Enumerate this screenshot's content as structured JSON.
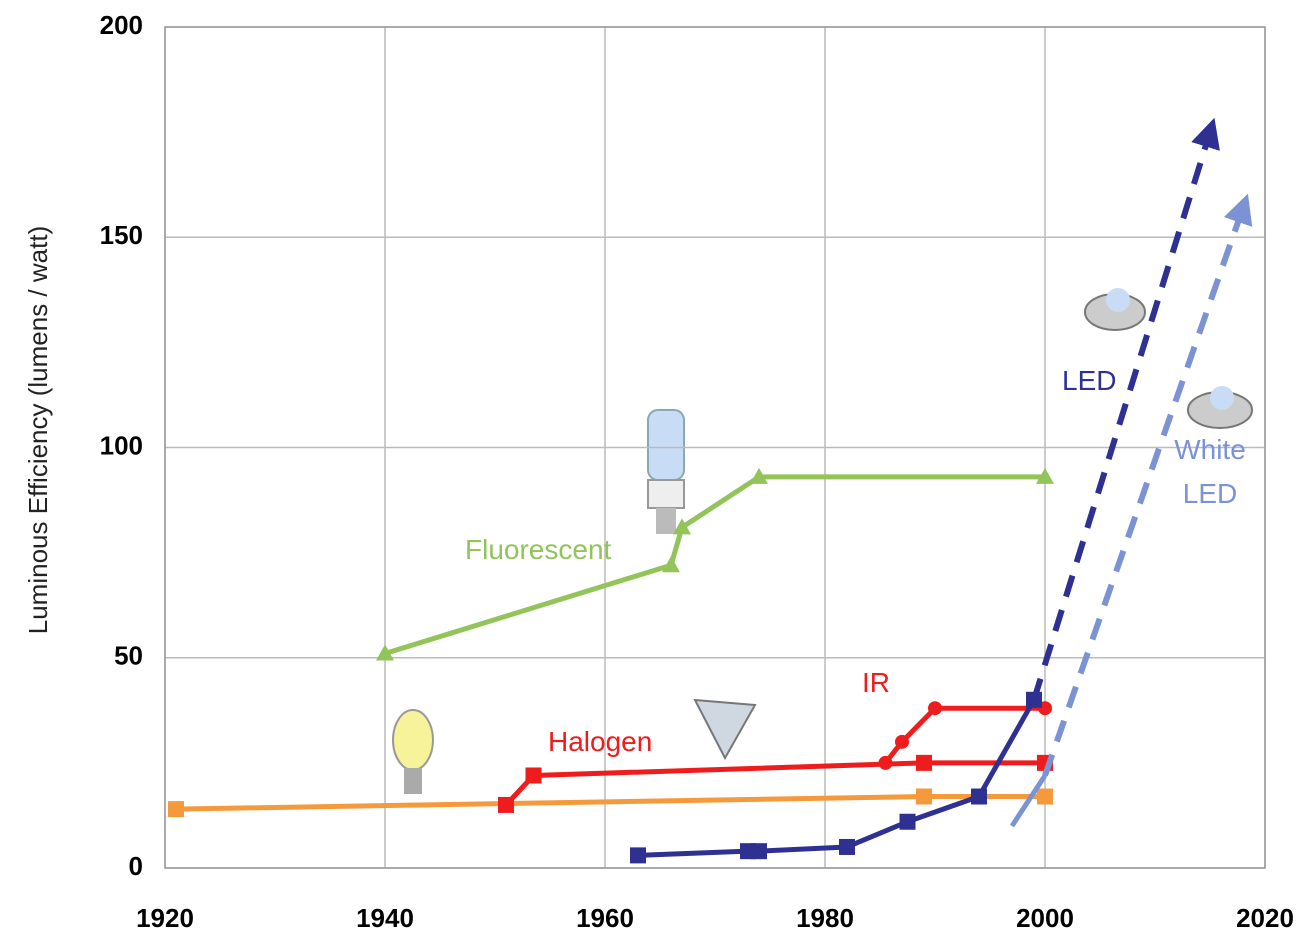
{
  "chart_data": {
    "type": "line",
    "y_label": "Luminous Efficiency (lumens / watt)",
    "xlim": [
      1920,
      2020
    ],
    "xticks": [
      1920,
      1940,
      1960,
      1980,
      2000,
      2020
    ],
    "ylim": [
      0,
      200
    ],
    "yticks": [
      0,
      50,
      100,
      150,
      200
    ],
    "grid": true,
    "series": [
      {
        "color": "#f59a3c",
        "marker": "square",
        "dash": false,
        "arrow": false,
        "x": [
          1921,
          1989,
          2000
        ],
        "values": [
          14,
          17,
          17
        ]
      },
      {
        "name": "Halogen",
        "color": "#ee1c1c",
        "marker": "square",
        "dash": false,
        "arrow": false,
        "x": [
          1951,
          1953.5,
          1989,
          2000
        ],
        "values": [
          15,
          22,
          25,
          25
        ]
      },
      {
        "name": "IR",
        "color": "#ee1c1c",
        "marker": "circle",
        "dash": false,
        "arrow": false,
        "x": [
          1985.5,
          1987,
          1990,
          2000
        ],
        "values": [
          25,
          30,
          38,
          38
        ]
      },
      {
        "name": "Fluorescent",
        "color": "#92c45a",
        "marker": "triangle",
        "dash": false,
        "arrow": false,
        "x": [
          1940,
          1966,
          1967,
          1974,
          2000
        ],
        "values": [
          51,
          72,
          81,
          93,
          93
        ]
      },
      {
        "name": "LED",
        "color": "#2e3192",
        "marker": "square",
        "dash": false,
        "arrow": false,
        "x": [
          1963,
          1973,
          1974,
          1982,
          1987.5,
          1994,
          1999
        ],
        "values": [
          3,
          4,
          4,
          5,
          11,
          17,
          40
        ]
      },
      {
        "color": "#2e3192",
        "marker": "none",
        "dash": true,
        "arrow": true,
        "x": [
          1999,
          2015
        ],
        "values": [
          40,
          175
        ]
      },
      {
        "name": "White LED",
        "color": "#7b93d4",
        "marker": "none",
        "dash": false,
        "arrow": false,
        "x": [
          1997,
          2000
        ],
        "values": [
          10,
          22
        ]
      },
      {
        "color": "#7b93d4",
        "marker": "none",
        "dash": true,
        "arrow": true,
        "x": [
          2000,
          2018
        ],
        "values": [
          22,
          157
        ]
      }
    ]
  }
}
